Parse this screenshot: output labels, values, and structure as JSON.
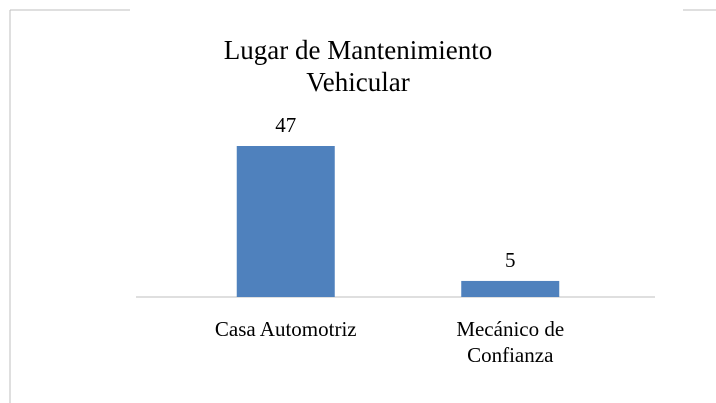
{
  "chart_data": {
    "type": "bar",
    "title": "Lugar de Mantenimiento Vehicular",
    "categories": [
      "Casa Automotriz",
      "Mecánico de Confianza"
    ],
    "values": [
      47,
      5
    ],
    "color": "#4f81bd"
  }
}
